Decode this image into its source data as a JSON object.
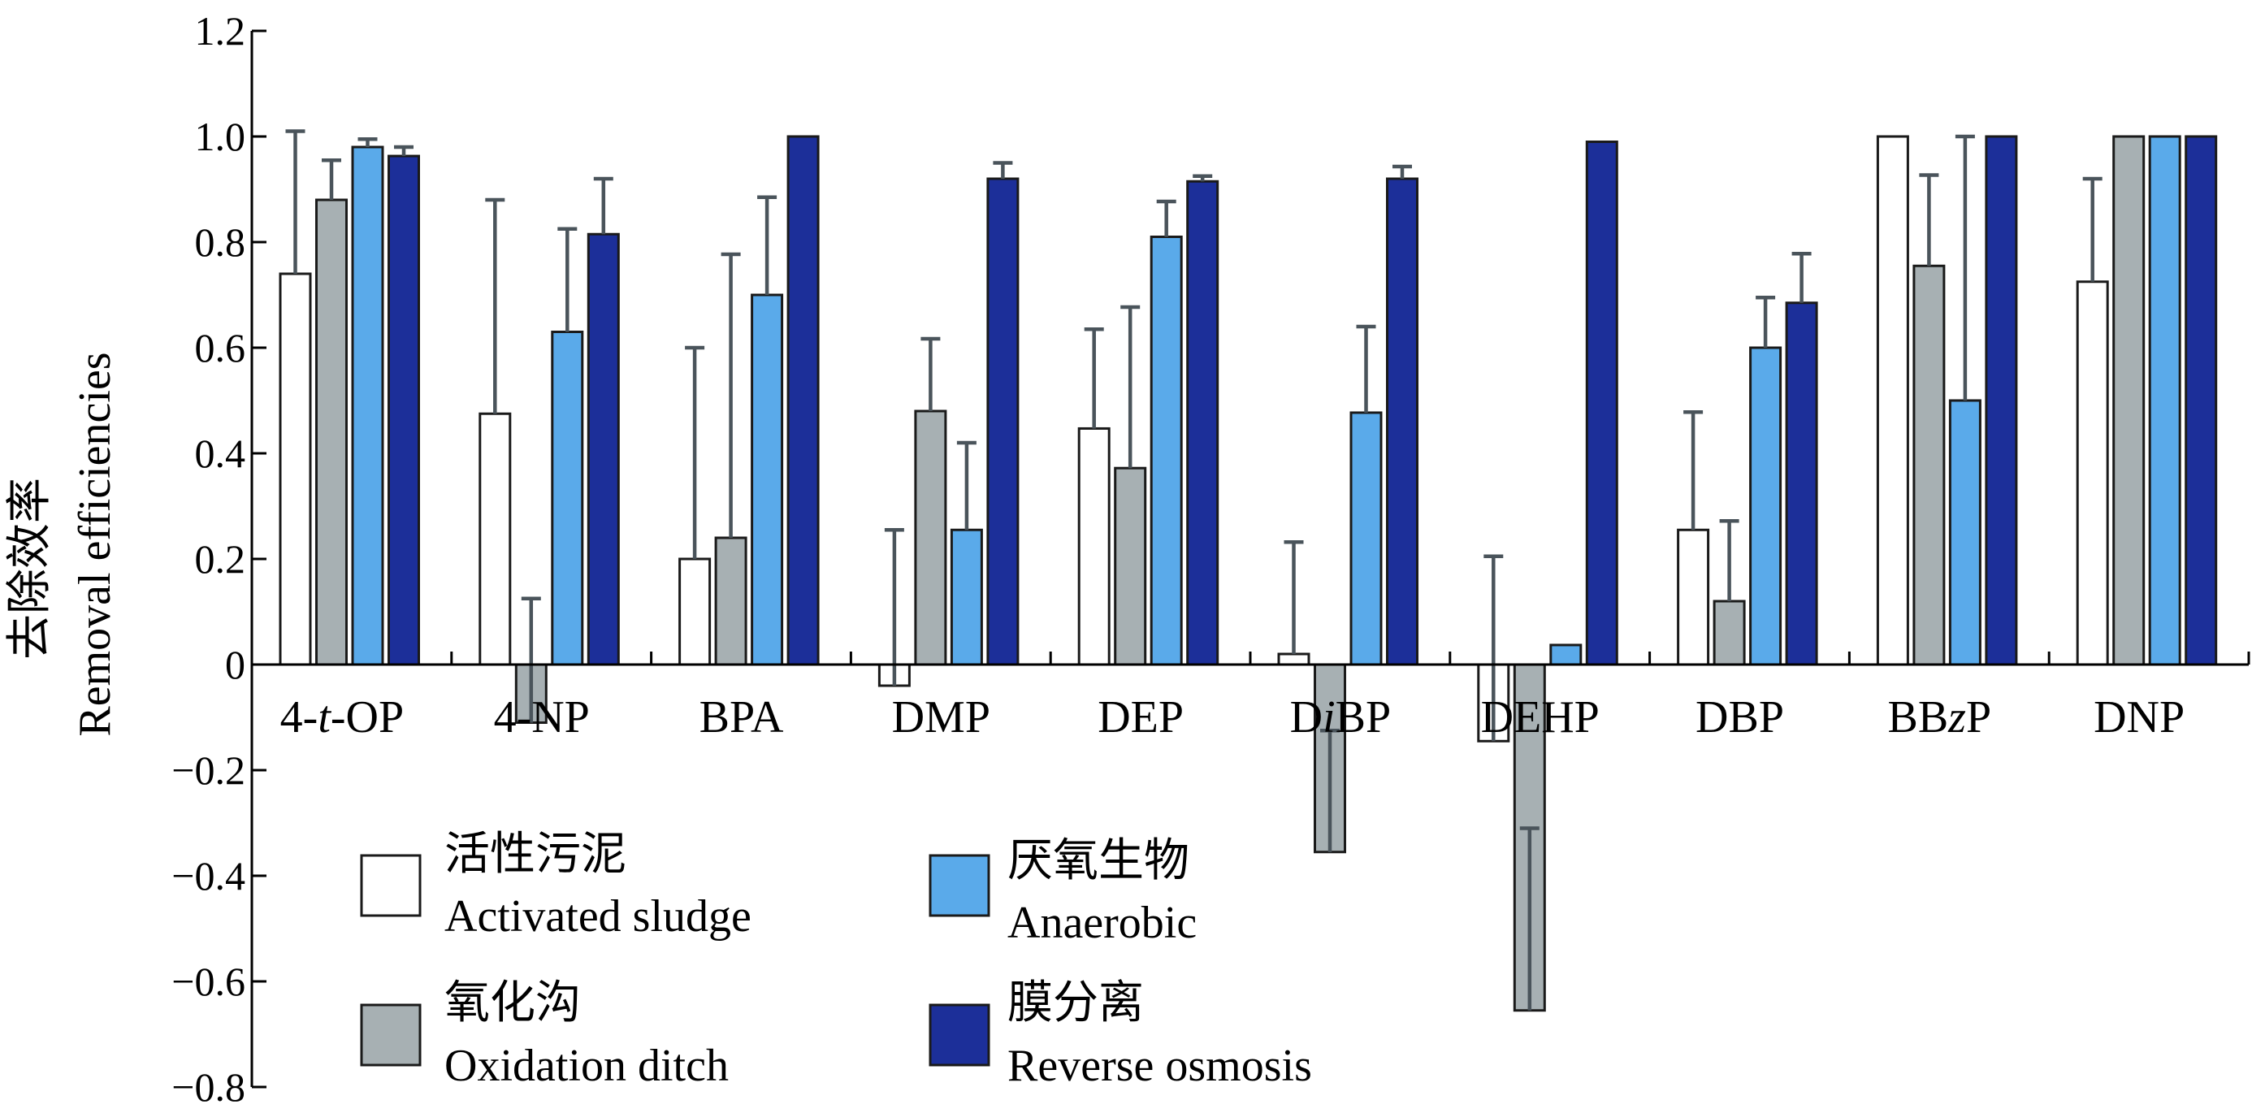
{
  "chart_data": {
    "type": "bar",
    "title": "",
    "xlabel": "",
    "ylabel_cn": "去除效率",
    "ylabel_en": "Removal efficiencies",
    "ylim": [
      -0.8,
      1.2
    ],
    "yticks": [
      {
        "value": 1.2,
        "label": "1.2"
      },
      {
        "value": 1.0,
        "label": "1.0"
      },
      {
        "value": 0.8,
        "label": "0.8"
      },
      {
        "value": 0.6,
        "label": "0.6"
      },
      {
        "value": 0.4,
        "label": "0.4"
      },
      {
        "value": 0.2,
        "label": "0.2"
      },
      {
        "value": 0.0,
        "label": "0"
      },
      {
        "value": -0.2,
        "label": "−0.2"
      },
      {
        "value": -0.4,
        "label": "−0.4"
      },
      {
        "value": -0.6,
        "label": "−0.6"
      },
      {
        "value": -0.8,
        "label": "−0.8"
      }
    ],
    "categories": [
      {
        "pre": "4-",
        "it": "t",
        "post": "-OP"
      },
      {
        "pre": "4-NP",
        "it": "",
        "post": ""
      },
      {
        "pre": "BPA",
        "it": "",
        "post": ""
      },
      {
        "pre": "DMP",
        "it": "",
        "post": ""
      },
      {
        "pre": "DEP",
        "it": "",
        "post": ""
      },
      {
        "pre": "D",
        "it": "i",
        "post": "BP"
      },
      {
        "pre": "DEHP",
        "it": "",
        "post": ""
      },
      {
        "pre": "DBP",
        "it": "",
        "post": ""
      },
      {
        "pre": "BB",
        "it": "z",
        "post": "P"
      },
      {
        "pre": "DNP",
        "it": "",
        "post": ""
      }
    ],
    "series": [
      {
        "name_cn": "活性污泥",
        "name_en": "Activated sludge",
        "color": "#ffffff",
        "values": [
          0.74,
          0.475,
          0.2,
          -0.04,
          0.447,
          0.02,
          -0.145,
          0.255,
          1.0,
          0.725
        ],
        "err_top": [
          1.01,
          0.88,
          0.6,
          0.255,
          0.635,
          0.232,
          0.205,
          0.478,
          1.0,
          0.92
        ]
      },
      {
        "name_cn": "氧化沟",
        "name_en": "Oxidation ditch",
        "color": "#a7b0b3",
        "values": [
          0.88,
          -0.11,
          0.24,
          0.48,
          0.372,
          -0.355,
          -0.655,
          0.12,
          0.755,
          1.0
        ],
        "err_top": [
          0.955,
          0.125,
          0.777,
          0.617,
          0.677,
          -0.125,
          -0.31,
          0.272,
          0.927,
          1.0
        ]
      },
      {
        "name_cn": "厌氧生物",
        "name_en": "Anaerobic",
        "color": "#5aaaea",
        "values": [
          0.98,
          0.63,
          0.7,
          0.255,
          0.81,
          0.477,
          0.037,
          0.6,
          0.5,
          1.0
        ],
        "err_top": [
          0.995,
          0.825,
          0.885,
          0.42,
          0.877,
          0.64,
          0.037,
          0.695,
          1.0,
          1.0
        ]
      },
      {
        "name_cn": "膜分离",
        "name_en": "Reverse osmosis",
        "color": "#1c2f99",
        "values": [
          0.963,
          0.815,
          1.0,
          0.92,
          0.915,
          0.92,
          0.99,
          0.685,
          1.0,
          1.0
        ],
        "err_top": [
          0.98,
          0.92,
          1.0,
          0.95,
          0.925,
          0.943,
          0.99,
          0.778,
          1.0,
          1.0
        ]
      }
    ],
    "legend": {
      "placement": "bottom-left",
      "columns": 2
    },
    "grid": false,
    "colors": {
      "axis": "#000000",
      "error_bar": "#4a545b",
      "bar_stroke": "#1a1a1a"
    }
  }
}
